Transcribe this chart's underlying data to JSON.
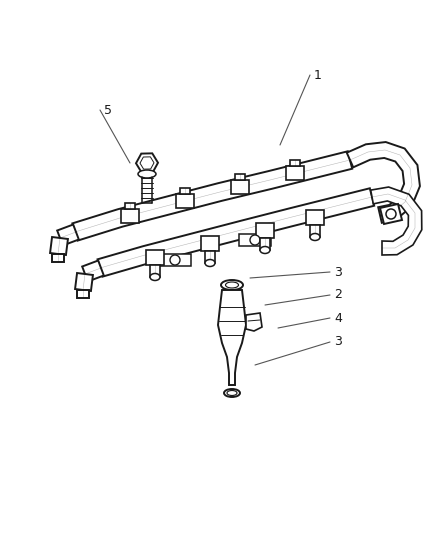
{
  "bg_color": "#ffffff",
  "lc": "#1a1a1a",
  "lw": 1.4,
  "fig_width": 4.39,
  "fig_height": 5.33,
  "dpi": 100,
  "callout_data": [
    [
      "1",
      310,
      75,
      280,
      145
    ],
    [
      "2",
      330,
      295,
      265,
      305
    ],
    [
      "3",
      330,
      272,
      250,
      278
    ],
    [
      "4",
      330,
      318,
      278,
      328
    ],
    [
      "3",
      330,
      342,
      255,
      365
    ],
    [
      "5",
      100,
      110,
      130,
      163
    ]
  ]
}
